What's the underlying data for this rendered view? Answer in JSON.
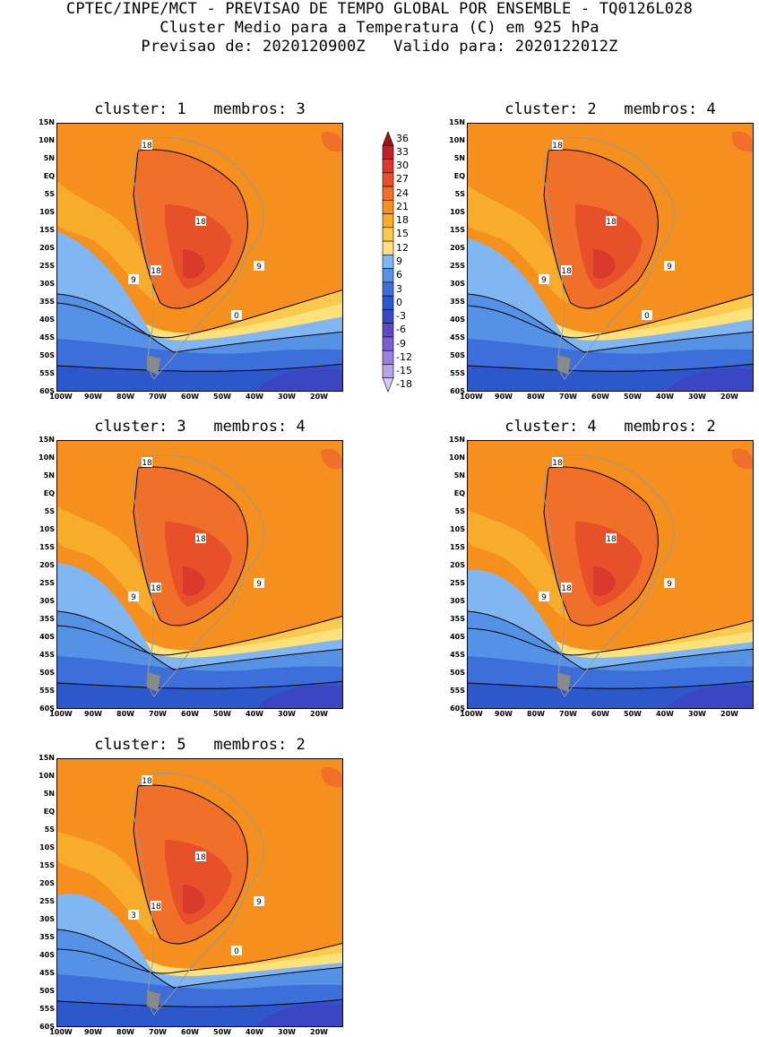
{
  "header": {
    "line1": "CPTEC/INPE/MCT - PREVISAO DE TEMPO GLOBAL POR ENSEMBLE - TQ0126L028",
    "line2": "Cluster Medio para a Temperatura (C) em 925 hPa",
    "line3": "Previsao de: 2020120900Z   Valido para: 2020122012Z"
  },
  "panels": [
    {
      "title": "cluster: 1   membros: 3",
      "labels": [
        "18",
        "18",
        "18",
        "9",
        "9",
        "0"
      ]
    },
    {
      "title": "cluster: 2   membros: 4",
      "labels": [
        "18",
        "18",
        "18",
        "9",
        "9",
        "0"
      ]
    },
    {
      "title": "cluster: 3   membros: 4",
      "labels": [
        "18",
        "18",
        "18",
        "9",
        "9"
      ]
    },
    {
      "title": "cluster: 4   membros: 2",
      "labels": [
        "18",
        "18",
        "18",
        "9",
        "9"
      ]
    },
    {
      "title": "cluster: 5   membros: 2",
      "labels": [
        "18",
        "18",
        "18",
        "9",
        "3",
        "0"
      ]
    }
  ],
  "lat_ticks": [
    "15N",
    "10N",
    "5N",
    "EQ",
    "5S",
    "10S",
    "15S",
    "20S",
    "25S",
    "30S",
    "35S",
    "40S",
    "45S",
    "50S",
    "55S",
    "60S"
  ],
  "lon_ticks": [
    "100W",
    "90W",
    "80W",
    "70W",
    "60W",
    "50W",
    "40W",
    "30W",
    "20W"
  ],
  "colorbar": {
    "levels": [
      "36",
      "33",
      "30",
      "27",
      "24",
      "21",
      "18",
      "15",
      "12",
      "9",
      "6",
      "3",
      "0",
      "-3",
      "-6",
      "-9",
      "-12",
      "-15",
      "-18"
    ],
    "colors": [
      "#a50f15",
      "#c0202a",
      "#d93a2b",
      "#e8502a",
      "#f0702a",
      "#f5901f",
      "#f8ac2c",
      "#fcc94f",
      "#fde27c",
      "#80b6f2",
      "#5592e6",
      "#3c6fd9",
      "#2c58cc",
      "#3a46c4",
      "#5d49c8",
      "#7a5fd4",
      "#9b80e0",
      "#b9a3ea",
      "#d8c8f5"
    ]
  }
}
